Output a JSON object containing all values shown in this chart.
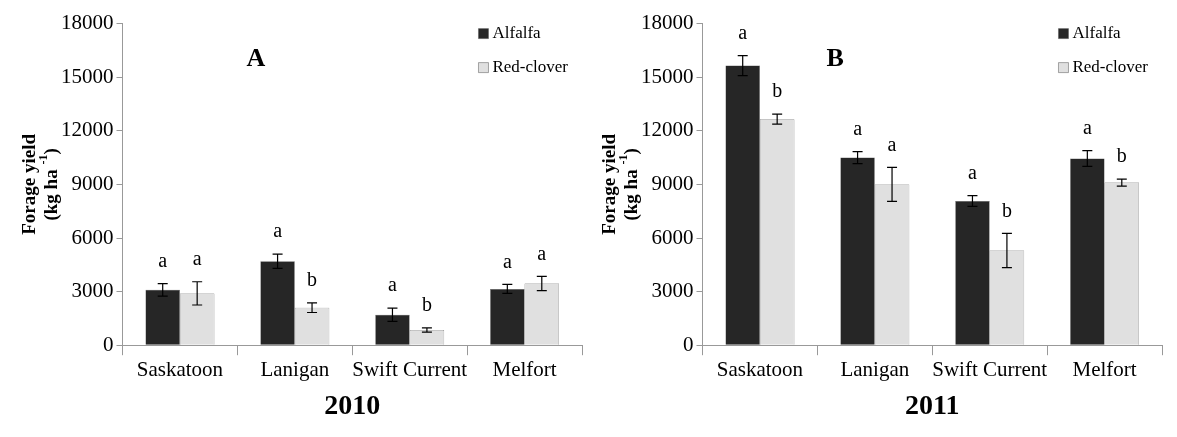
{
  "chart_data": [
    {
      "type": "bar",
      "categories": [
        "Saskatoon",
        "Lanigan",
        "Swift Current",
        "Melfort"
      ],
      "xlabel": "2010",
      "ylabel": "Forage yield\n(kg ha $^{-1}$)",
      "ylim": [
        0,
        18000
      ],
      "yticks": [
        0,
        3000,
        6000,
        9000,
        12000,
        15000,
        18000
      ],
      "grid": false,
      "legend": "top right",
      "annotations": [
        "A"
      ],
      "series": [
        {
          "name": "Alfalfa",
          "color": "#262626",
          "values": [
            3100,
            4700,
            1700,
            3150
          ],
          "errors": [
            350,
            400,
            370,
            250
          ],
          "value_labels": [
            "a",
            "a",
            "a",
            "a"
          ]
        },
        {
          "name": "Red-clover",
          "color": "#e0e0e0",
          "values": [
            2900,
            2100,
            850,
            3450
          ],
          "errors": [
            650,
            270,
            120,
            400
          ],
          "value_labels": [
            "a",
            "b",
            "b",
            "a"
          ]
        }
      ]
    },
    {
      "type": "bar",
      "categories": [
        "Saskatoon",
        "Lanigan",
        "Swift Current",
        "Melfort"
      ],
      "xlabel": "2011",
      "ylabel": "Forage yield\n(kg ha $^{-1}$)",
      "ylim": [
        0,
        18000
      ],
      "yticks": [
        0,
        3000,
        6000,
        9000,
        12000,
        15000,
        18000
      ],
      "grid": false,
      "legend": "top right",
      "annotations": [
        "B"
      ],
      "series": [
        {
          "name": "Alfalfa",
          "color": "#262626",
          "values": [
            15650,
            10500,
            8070,
            10450
          ],
          "errors": [
            560,
            340,
            300,
            440
          ],
          "value_labels": [
            "a",
            "a",
            "a",
            "a"
          ]
        },
        {
          "name": "Red-clover",
          "color": "#e0e0e0",
          "values": [
            12650,
            9000,
            5300,
            9100
          ],
          "errors": [
            280,
            950,
            960,
            200
          ],
          "value_labels": [
            "b",
            "a",
            "b",
            "b"
          ]
        }
      ]
    }
  ]
}
